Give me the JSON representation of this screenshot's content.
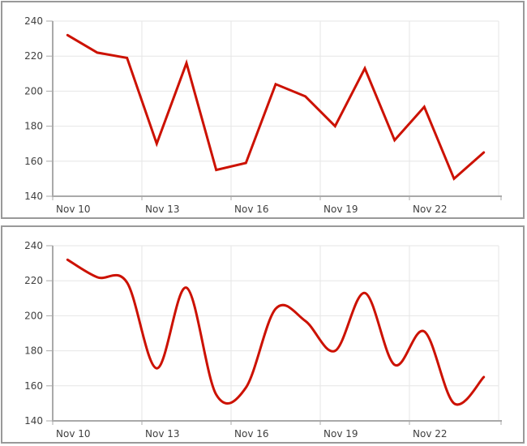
{
  "page": {
    "background": "#ffffff",
    "panel_border_color": "#999999"
  },
  "style": {
    "line_color": "#cc1100",
    "grid_color": "#e6e6e6",
    "axis_color": "#a9a9a9",
    "label_color": "#404040",
    "plot_background": "#ffffff"
  },
  "chart_data": [
    {
      "type": "line",
      "interpolation": "linear",
      "title": "",
      "xlabel": "",
      "ylabel": "",
      "x": [
        "Nov 10",
        "Nov 11",
        "Nov 12",
        "Nov 13",
        "Nov 14",
        "Nov 15",
        "Nov 16",
        "Nov 17",
        "Nov 18",
        "Nov 19",
        "Nov 20",
        "Nov 21",
        "Nov 22",
        "Nov 23",
        "Nov 24"
      ],
      "values": [
        232,
        222,
        219,
        170,
        216,
        155,
        159,
        204,
        197,
        180,
        213,
        172,
        191,
        150,
        165
      ],
      "ylim": [
        140,
        240
      ],
      "ytick_step": 20,
      "ytick_labels": [
        "140",
        "160",
        "180",
        "200",
        "220",
        "240"
      ],
      "xtick_labels": [
        "Nov 10",
        "Nov 13",
        "Nov 16",
        "Nov 19",
        "Nov 22"
      ],
      "xtick_indices": [
        0,
        3,
        6,
        9,
        12
      ],
      "grid": true,
      "legend": "none",
      "line_color": "#cc1100"
    },
    {
      "type": "line",
      "interpolation": "spline",
      "title": "",
      "xlabel": "",
      "ylabel": "",
      "x": [
        "Nov 10",
        "Nov 11",
        "Nov 12",
        "Nov 13",
        "Nov 14",
        "Nov 15",
        "Nov 16",
        "Nov 17",
        "Nov 18",
        "Nov 19",
        "Nov 20",
        "Nov 21",
        "Nov 22",
        "Nov 23",
        "Nov 24"
      ],
      "values": [
        232,
        222,
        219,
        170,
        216,
        155,
        159,
        204,
        197,
        180,
        213,
        172,
        191,
        150,
        165
      ],
      "ylim": [
        140,
        240
      ],
      "ytick_step": 20,
      "ytick_labels": [
        "140",
        "160",
        "180",
        "200",
        "220",
        "240"
      ],
      "xtick_labels": [
        "Nov 10",
        "Nov 13",
        "Nov 16",
        "Nov 19",
        "Nov 22"
      ],
      "xtick_indices": [
        0,
        3,
        6,
        9,
        12
      ],
      "grid": true,
      "legend": "none",
      "line_color": "#cc1100"
    }
  ]
}
